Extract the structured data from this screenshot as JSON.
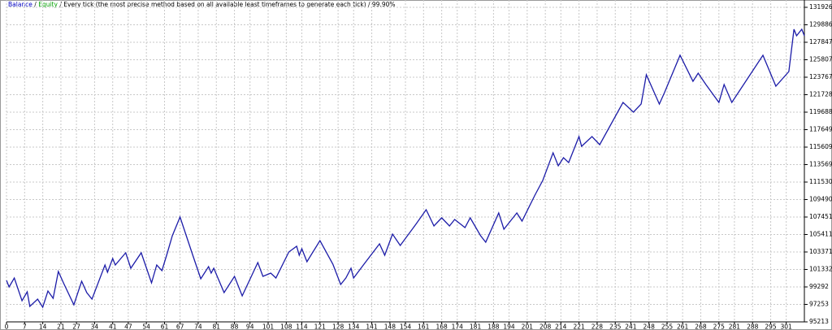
{
  "chart_data": {
    "type": "line",
    "title_parts": [
      "Balance",
      "Equity",
      "Every tick (the most precise method based on all available least timeframes to generate each tick)",
      "99.90%"
    ],
    "title_colors": [
      "#0000c0",
      "#00a000",
      "#000000",
      "#000000"
    ],
    "separator": " / ",
    "x": [
      0,
      1,
      3,
      6,
      8,
      9,
      12,
      14,
      16,
      18,
      20,
      22,
      26,
      29,
      31,
      33,
      38,
      39,
      41,
      42,
      46,
      48,
      52,
      56,
      58,
      60,
      62,
      64,
      67,
      72,
      75,
      78,
      79,
      80,
      84,
      88,
      91,
      97,
      99,
      102,
      104,
      109,
      112,
      113,
      114,
      116,
      121,
      126,
      129,
      131,
      133,
      134,
      138,
      144,
      146,
      149,
      152,
      158,
      162,
      165,
      168,
      171,
      173,
      177,
      179,
      183,
      185,
      190,
      192,
      197,
      199,
      204,
      207,
      211,
      213,
      215,
      217,
      221,
      222,
      226,
      229,
      238,
      242,
      245,
      247,
      252,
      254,
      260,
      265,
      267,
      270,
      275,
      277,
      280,
      292,
      297,
      302,
      304,
      305,
      307,
      308
    ],
    "series": [
      {
        "name": "Balance",
        "color": "#1c1ca8",
        "values": [
          100051,
          99292,
          100336,
          97680,
          98723,
          97016,
          97869,
          96921,
          98818,
          97964,
          101095,
          99767,
          97205,
          99957,
          98628,
          97869,
          101854,
          101000,
          102613,
          101854,
          103277,
          101474,
          103277,
          99767,
          101854,
          101190,
          103182,
          105269,
          107451,
          102897,
          100241,
          101664,
          100905,
          101474,
          98628,
          100526,
          98249,
          102139,
          100526,
          100905,
          100336,
          103372,
          104036,
          102992,
          103751,
          102233,
          104700,
          101949,
          99577,
          100336,
          101474,
          100336,
          101949,
          104321,
          102992,
          105459,
          104131,
          106597,
          108305,
          106408,
          107356,
          106408,
          107167,
          106218,
          107356,
          105269,
          104510,
          107926,
          106028,
          107926,
          106977,
          110013,
          111720,
          114946,
          113428,
          114377,
          113807,
          116843,
          115705,
          116843,
          115895,
          120828,
          119689,
          120638,
          124053,
          120638,
          121966,
          126330,
          123295,
          124243,
          122915,
          120828,
          122915,
          120828,
          126330,
          122725,
          124433,
          129366,
          128607,
          129366,
          128607
        ]
      }
    ],
    "xlim": [
      0,
      308
    ],
    "xticks": [
      0,
      7,
      14,
      21,
      27,
      34,
      41,
      47,
      54,
      61,
      67,
      74,
      81,
      88,
      94,
      101,
      108,
      114,
      121,
      128,
      134,
      141,
      148,
      154,
      161,
      168,
      174,
      181,
      188,
      194,
      201,
      208,
      214,
      221,
      228,
      235,
      241,
      248,
      255,
      261,
      268,
      275,
      281,
      288,
      295,
      301
    ],
    "ylim": [
      95213,
      131926
    ],
    "yticks": [
      95213,
      97253,
      99292,
      101332,
      103371,
      105411,
      107451,
      109490,
      111530,
      113569,
      115609,
      117649,
      119688,
      121728,
      123767,
      125807,
      127847,
      129886,
      131926
    ],
    "grid": true
  }
}
